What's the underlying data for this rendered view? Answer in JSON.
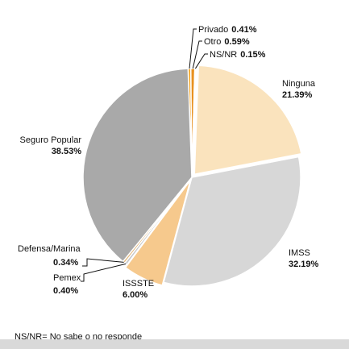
{
  "chart_data": {
    "type": "pie",
    "slices": [
      {
        "label": "Privado",
        "value": 0.41,
        "display": "0.41%",
        "color": "#f5a623"
      },
      {
        "label": "Otro",
        "value": 0.59,
        "display": "0.59%",
        "color": "#e89120"
      },
      {
        "label": "NS/NR",
        "value": 0.15,
        "display": "0.15%",
        "color": "#f6c36b"
      },
      {
        "label": "Ninguna",
        "value": 21.39,
        "display": "21.39%",
        "color": "#fae3bd"
      },
      {
        "label": "IMSS",
        "value": 32.19,
        "display": "32.19%",
        "color": "#d7d7d7"
      },
      {
        "label": "ISSSTE",
        "value": 6.0,
        "display": "6.00%",
        "color": "#f6c98d"
      },
      {
        "label": "Pemex",
        "value": 0.4,
        "display": "0.40%",
        "color": "#c7c7c7"
      },
      {
        "label": "Defensa/Marina",
        "value": 0.34,
        "display": "0.34%",
        "color": "#e2b678"
      },
      {
        "label": "Seguro Popular",
        "value": 38.53,
        "display": "38.53%",
        "color": "#a9a9a9"
      }
    ],
    "footnote": "NS/NR= No sabe o no responde"
  }
}
